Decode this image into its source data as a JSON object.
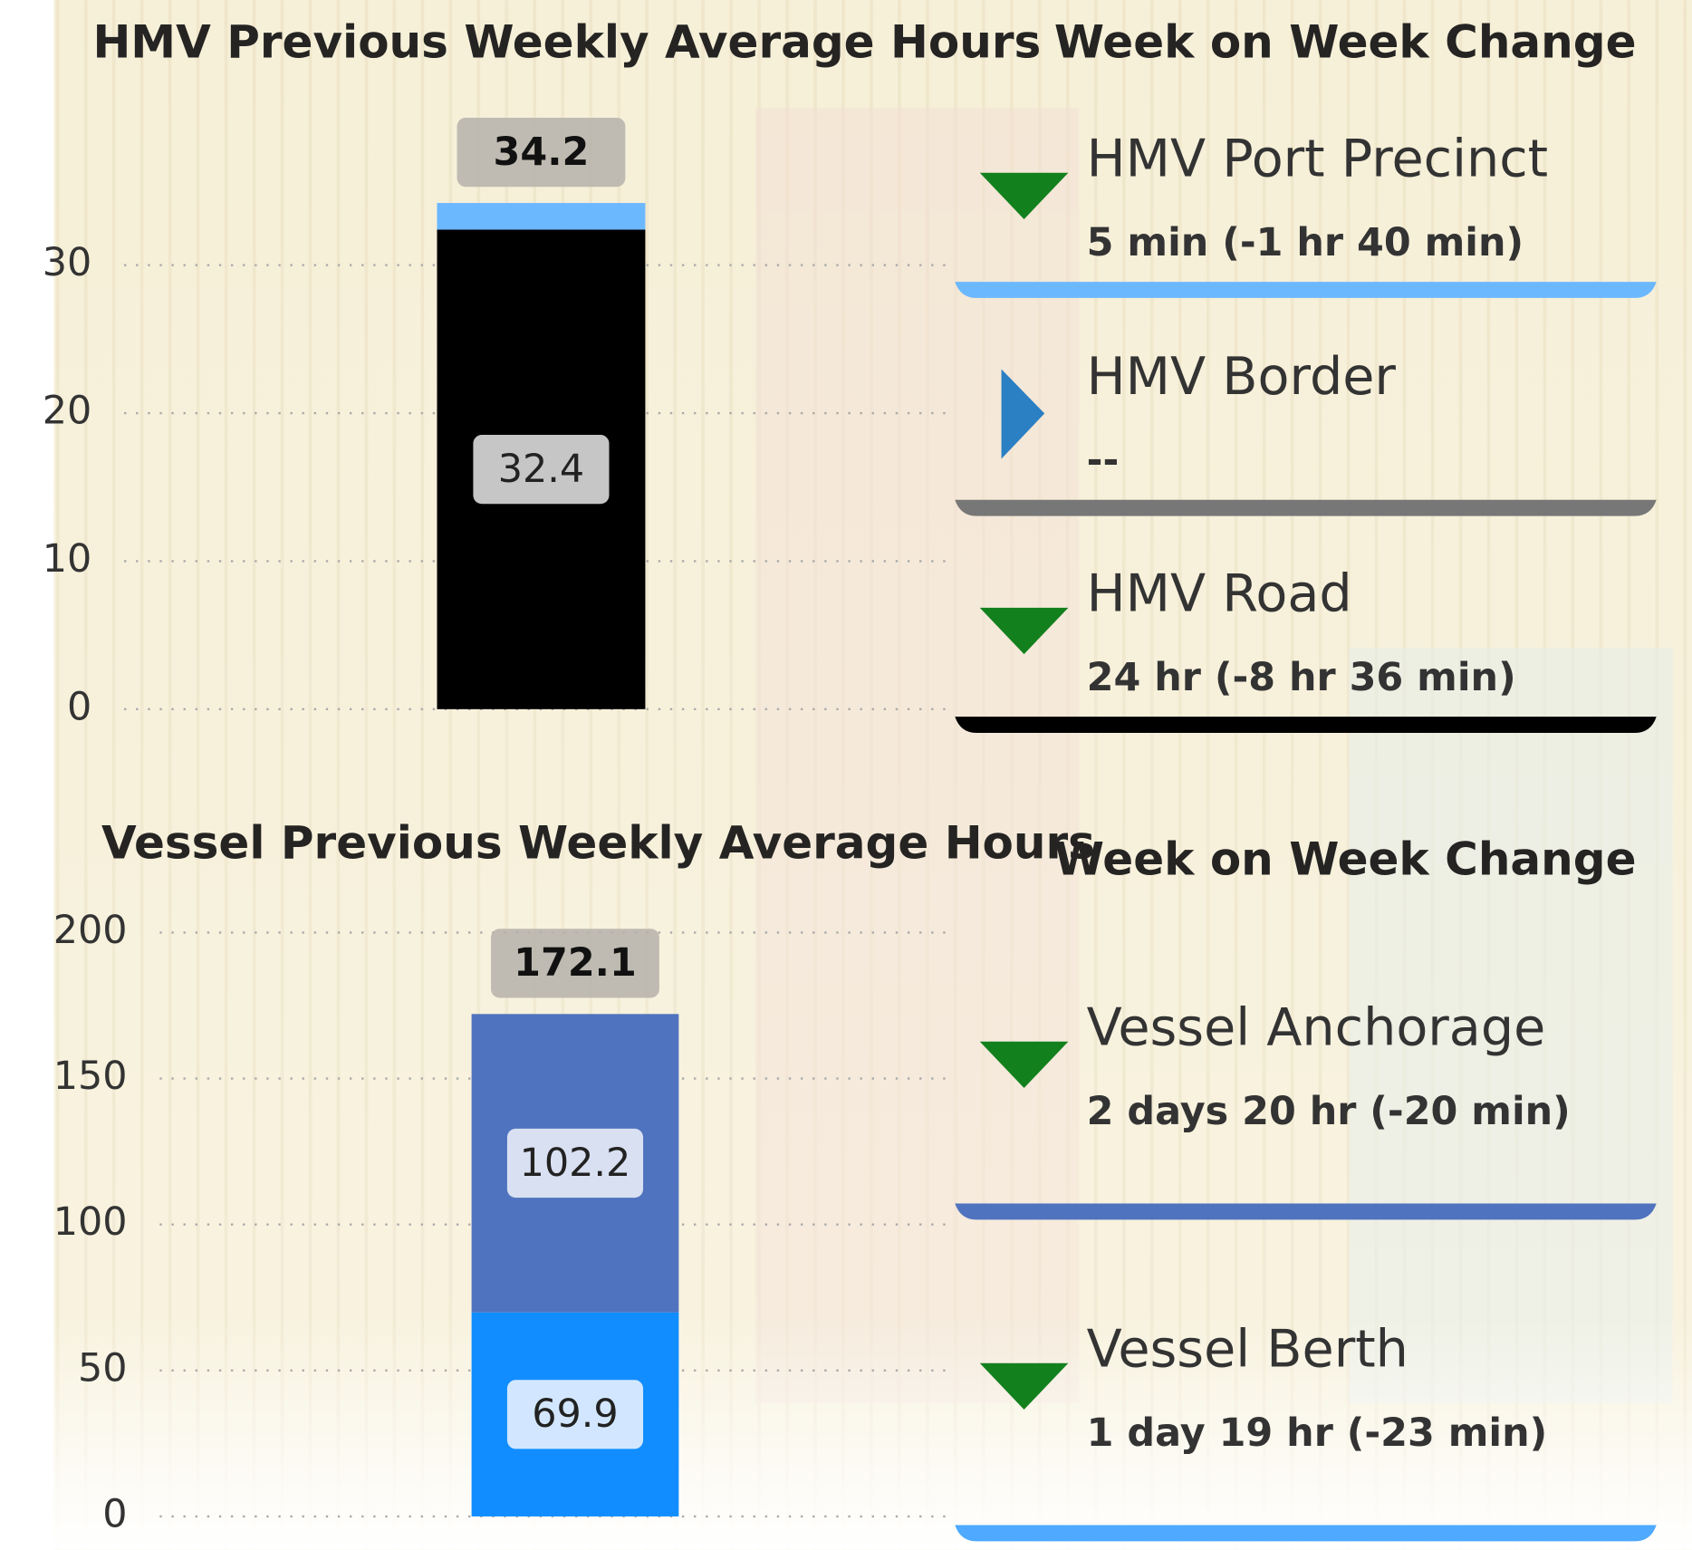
{
  "chart_data": [
    {
      "type": "bar",
      "stacked": true,
      "title": "HMV Previous Weekly Average Hours",
      "categories": [
        null
      ],
      "series": [
        {
          "color": "#000000",
          "values": [
            32.4
          ]
        },
        {
          "color": "#6cb8ff",
          "values": [
            1.8
          ]
        }
      ],
      "totals": [
        34.2
      ],
      "ylim": [
        0,
        35
      ],
      "yticks": [
        0,
        10,
        20,
        30
      ],
      "grid": true
    },
    {
      "type": "bar",
      "stacked": true,
      "title": "Vessel Previous Weekly Average Hours",
      "categories": [
        null
      ],
      "series": [
        {
          "color": "#118dff",
          "values": [
            69.9
          ]
        },
        {
          "color": "#4f73be",
          "values": [
            102.2
          ]
        }
      ],
      "totals": [
        172.1
      ],
      "ylim": [
        0,
        200
      ],
      "yticks": [
        0,
        50,
        100,
        150,
        200
      ],
      "grid": true
    }
  ],
  "cards": [
    {
      "heading": "Week on Week Change",
      "items": [
        {
          "name": "HMV Port Precinct",
          "value": "5 min (-1 hr 40 min)",
          "indicator": "down",
          "color": "#6cb8ff"
        },
        {
          "name": "HMV Border",
          "value": "--",
          "indicator": "right",
          "color": "#777777"
        },
        {
          "name": "HMV Road",
          "value": "24 hr (-8 hr 36 min)",
          "indicator": "down",
          "color": "#000000"
        }
      ]
    },
    {
      "heading": "Week on Week Change",
      "items": [
        {
          "name": "Vessel Anchorage",
          "value": "2 days 20 hr (-20 min)",
          "indicator": "down",
          "color": "#4f73be"
        },
        {
          "name": "Vessel Berth",
          "value": "1 day 19 hr (-23 min)",
          "indicator": "down",
          "color": "#4ea9ff"
        }
      ]
    }
  ]
}
